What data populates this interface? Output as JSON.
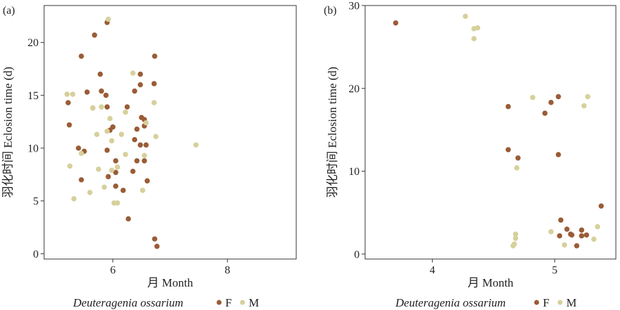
{
  "colors": {
    "F": "#9a5c36",
    "M": "#d6d09b"
  },
  "legend": {
    "species": "Deuteragenia ossarium",
    "F": "F",
    "M": "M"
  },
  "chart_data": [
    {
      "type": "scatter",
      "panel_label": "(a)",
      "xlabel": "月 Month",
      "ylabel": "羽化时间 Eclosion time (d)",
      "xlim": [
        4.8,
        9.2
      ],
      "ylim": [
        -0.5,
        23.5
      ],
      "xticks": [
        6,
        8
      ],
      "yticks": [
        0,
        5,
        10,
        15,
        20
      ],
      "grid": false,
      "series": [
        {
          "name": "F",
          "points": [
            [
              5.45,
              18.7
            ],
            [
              5.68,
              20.7
            ],
            [
              5.9,
              21.9
            ],
            [
              5.22,
              14.3
            ],
            [
              5.24,
              12.2
            ],
            [
              5.4,
              10.0
            ],
            [
              5.5,
              9.7
            ],
            [
              5.45,
              7.0
            ],
            [
              5.55,
              15.3
            ],
            [
              5.65,
              13.8
            ],
            [
              5.8,
              15.4
            ],
            [
              5.78,
              17.0
            ],
            [
              5.88,
              15.0
            ],
            [
              5.9,
              13.9
            ],
            [
              6.0,
              12.0
            ],
            [
              5.95,
              11.7
            ],
            [
              5.9,
              9.8
            ],
            [
              6.05,
              8.8
            ],
            [
              6.05,
              7.7
            ],
            [
              5.92,
              7.3
            ],
            [
              6.05,
              6.4
            ],
            [
              6.18,
              6.0
            ],
            [
              6.27,
              3.3
            ],
            [
              6.25,
              13.9
            ],
            [
              6.38,
              15.4
            ],
            [
              6.38,
              10.8
            ],
            [
              6.42,
              11.8
            ],
            [
              6.48,
              17.0
            ],
            [
              6.48,
              16.0
            ],
            [
              6.5,
              12.9
            ],
            [
              6.55,
              12.7
            ],
            [
              6.55,
              12.1
            ],
            [
              6.48,
              10.3
            ],
            [
              6.58,
              10.3
            ],
            [
              6.42,
              8.8
            ],
            [
              6.55,
              8.8
            ],
            [
              6.6,
              6.9
            ],
            [
              6.35,
              7.8
            ],
            [
              6.73,
              18.7
            ],
            [
              6.72,
              16.1
            ],
            [
              6.73,
              1.4
            ],
            [
              6.77,
              0.7
            ]
          ]
        },
        {
          "name": "M",
          "points": [
            [
              5.2,
              15.1
            ],
            [
              5.3,
              15.1
            ],
            [
              5.25,
              8.3
            ],
            [
              5.32,
              5.2
            ],
            [
              5.45,
              9.5
            ],
            [
              5.6,
              5.8
            ],
            [
              5.65,
              13.8
            ],
            [
              5.72,
              11.3
            ],
            [
              5.75,
              8.0
            ],
            [
              5.8,
              13.9
            ],
            [
              5.85,
              6.3
            ],
            [
              5.9,
              11.6
            ],
            [
              5.92,
              22.2
            ],
            [
              5.95,
              12.8
            ],
            [
              5.98,
              10.7
            ],
            [
              5.98,
              7.9
            ],
            [
              6.02,
              4.8
            ],
            [
              6.08,
              4.8
            ],
            [
              6.08,
              8.2
            ],
            [
              6.15,
              11.3
            ],
            [
              6.22,
              13.4
            ],
            [
              6.22,
              9.4
            ],
            [
              6.35,
              17.1
            ],
            [
              6.52,
              6.0
            ],
            [
              6.55,
              9.3
            ],
            [
              6.58,
              12.4
            ],
            [
              6.72,
              14.3
            ],
            [
              6.75,
              11.1
            ],
            [
              7.45,
              10.3
            ]
          ]
        }
      ]
    },
    {
      "type": "scatter",
      "panel_label": "(b)",
      "xlabel": "月 Month",
      "ylabel": "羽化时间 Eclosion time (d)",
      "xlim": [
        3.45,
        5.5
      ],
      "ylim": [
        -0.6,
        30.0
      ],
      "xticks": [
        4,
        5
      ],
      "yticks": [
        0,
        10,
        20,
        30
      ],
      "grid": false,
      "series": [
        {
          "name": "F",
          "points": [
            [
              3.7,
              27.9
            ],
            [
              4.62,
              17.8
            ],
            [
              4.62,
              12.6
            ],
            [
              4.7,
              11.6
            ],
            [
              4.92,
              17.0
            ],
            [
              4.97,
              18.3
            ],
            [
              5.03,
              19.0
            ],
            [
              5.03,
              12.0
            ],
            [
              5.04,
              2.2
            ],
            [
              5.05,
              4.1
            ],
            [
              5.1,
              3.0
            ],
            [
              5.13,
              2.4
            ],
            [
              5.14,
              2.3
            ],
            [
              5.18,
              1.0
            ],
            [
              5.22,
              2.9
            ],
            [
              5.22,
              2.2
            ],
            [
              5.26,
              2.3
            ],
            [
              5.38,
              5.8
            ]
          ]
        },
        {
          "name": "M",
          "points": [
            [
              4.27,
              28.7
            ],
            [
              4.34,
              27.2
            ],
            [
              4.37,
              27.3
            ],
            [
              4.34,
              26.0
            ],
            [
              4.82,
              18.9
            ],
            [
              4.69,
              10.4
            ],
            [
              4.68,
              2.4
            ],
            [
              4.68,
              1.9
            ],
            [
              4.67,
              1.2
            ],
            [
              4.66,
              1.0
            ],
            [
              4.97,
              2.7
            ],
            [
              5.08,
              1.1
            ],
            [
              5.24,
              17.9
            ],
            [
              5.27,
              19.0
            ],
            [
              5.32,
              1.8
            ],
            [
              5.35,
              3.3
            ]
          ]
        }
      ]
    }
  ]
}
